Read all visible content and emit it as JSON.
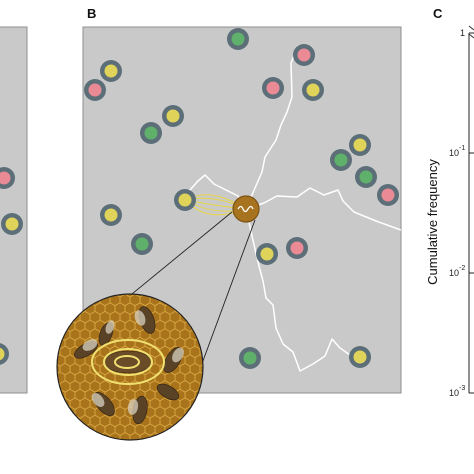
{
  "panels": {
    "b_letter": "B",
    "c_letter": "C"
  },
  "colors": {
    "arena_bg": "#c9c9c9",
    "arena_border": "#8f8f8f",
    "ring": "#5c6f78",
    "pink": "#e98a95",
    "green": "#5fb06a",
    "yellow": "#e0d35a",
    "trajectory": "#ffffff",
    "queen": "#a8731f",
    "comb": "#a8731a"
  },
  "bees_panel_a": [
    "pink",
    "yellow",
    "yellow"
  ],
  "bees_panel_b": [
    "yellow",
    "pink",
    "green",
    "pink",
    "green",
    "yellow",
    "pink",
    "yellow",
    "yellow",
    "green",
    "pink",
    "green",
    "yellow",
    "yellow",
    "pink",
    "green",
    "yellow",
    "green",
    "yellow"
  ],
  "panel_c": {
    "ylabel": "Cumulative frequency",
    "ytick_labels": [
      {
        "base": "1",
        "exp": ""
      },
      {
        "base": "10",
        "exp": "-1"
      },
      {
        "base": "10",
        "exp": "-2"
      },
      {
        "base": "10",
        "exp": "-3"
      }
    ],
    "y_scale": "log",
    "ylim": [
      0.001,
      1
    ]
  }
}
